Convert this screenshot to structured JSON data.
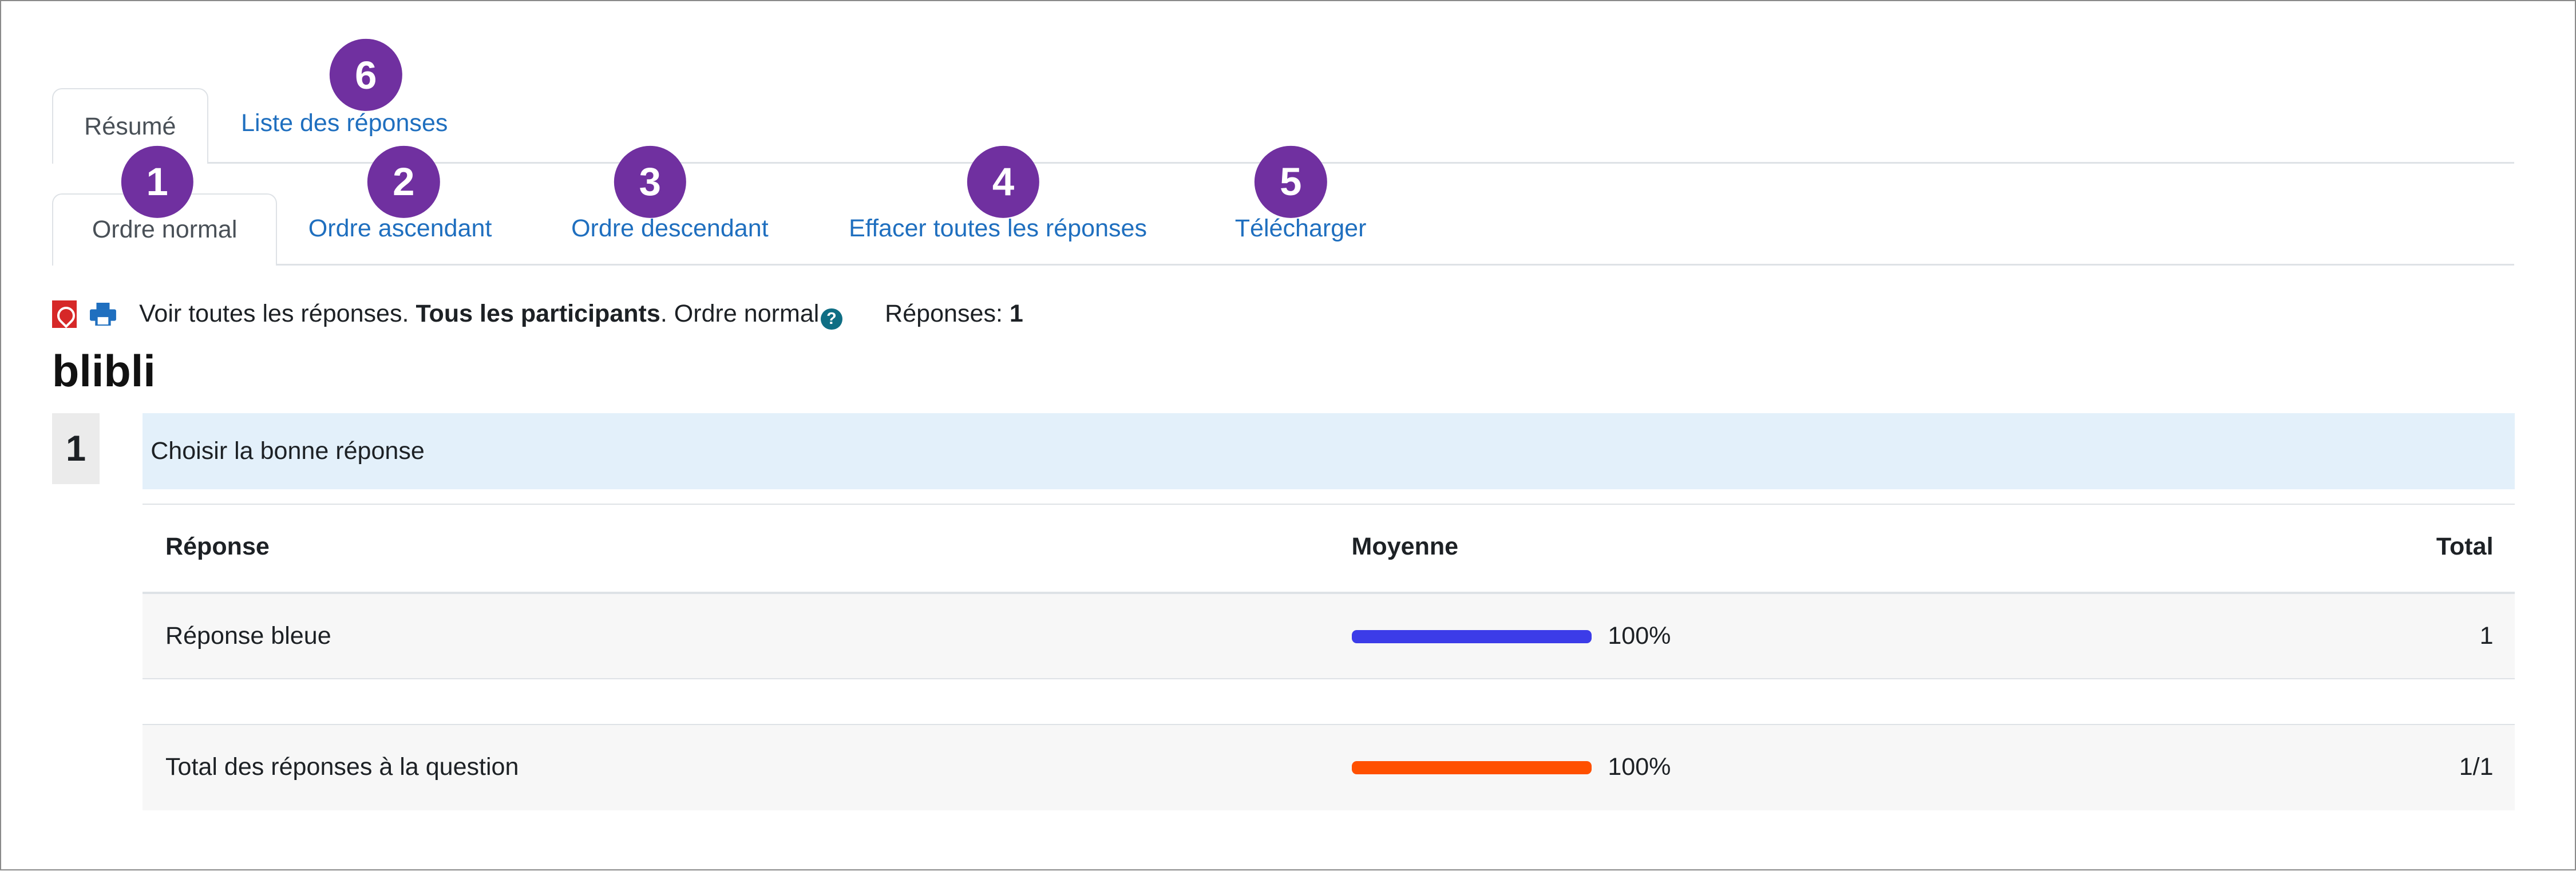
{
  "tabs": {
    "primary": [
      {
        "label": "Résumé",
        "active": true
      },
      {
        "label": "Liste des réponses",
        "active": false
      }
    ],
    "secondary": [
      {
        "label": "Ordre normal",
        "active": true
      },
      {
        "label": "Ordre ascendant",
        "active": false
      },
      {
        "label": "Ordre descendant",
        "active": false
      },
      {
        "label": "Effacer toutes les réponses",
        "active": false
      },
      {
        "label": "Télécharger",
        "active": false
      }
    ]
  },
  "badges": [
    "1",
    "2",
    "3",
    "4",
    "5",
    "6"
  ],
  "badge_color": "#7030a0",
  "info": {
    "icons": [
      "pdf-icon",
      "print-icon"
    ],
    "text1": "Voir toutes les réponses.",
    "text2": "Tous les participants",
    "text3": ". Ordre normal",
    "responses_label": "Réponses:",
    "responses_count": "1"
  },
  "title": "blibli",
  "question": {
    "number": "1",
    "text": "Choisir la bonne réponse"
  },
  "table": {
    "headers": [
      "Réponse",
      "Moyenne",
      "Total"
    ],
    "rows": [
      {
        "label": "Réponse bleue",
        "percent": 100,
        "percent_text": "100%",
        "total": "1",
        "bar_color": "#3c3ce8"
      }
    ],
    "total_row": {
      "label": "Total des réponses à la question",
      "percent": 100,
      "percent_text": "100%",
      "total": "1/1",
      "bar_color": "#ff5000"
    }
  }
}
